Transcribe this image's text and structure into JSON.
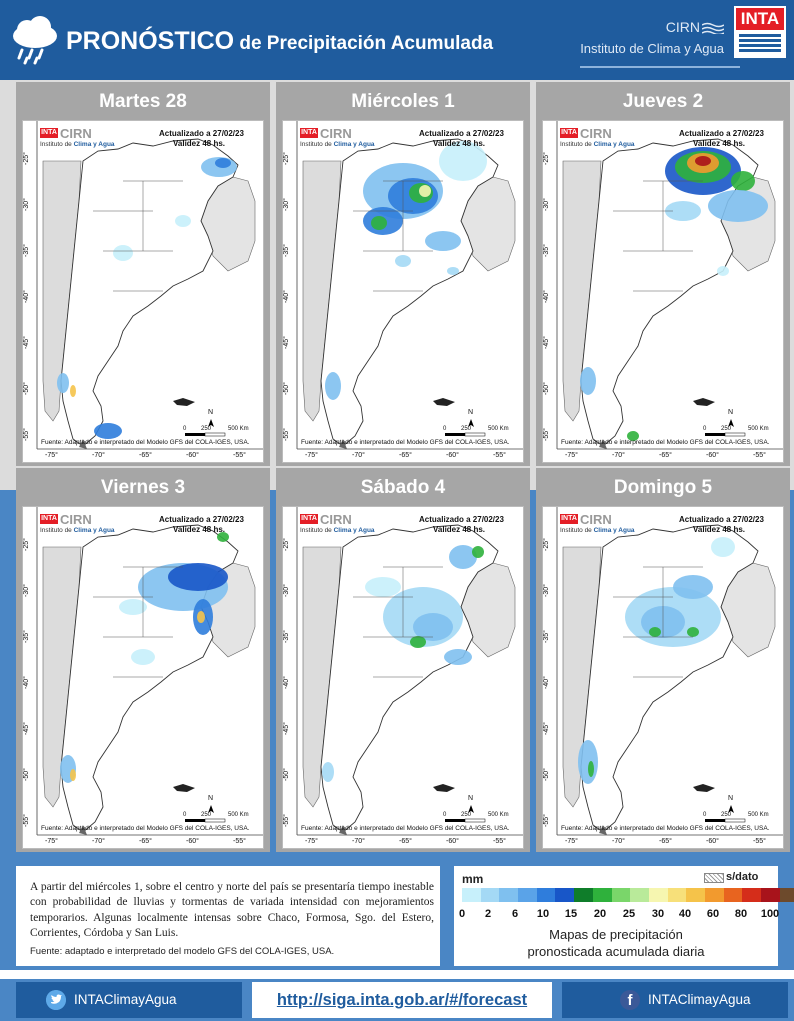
{
  "header": {
    "title_big": "PRONÓSTICO",
    "title_small": " de Precipitación Acumulada",
    "brand_cirn": "CIRN",
    "brand_institute": "Instituto de Clima y Agua",
    "logo_text": "INTA"
  },
  "maps": {
    "updated": "Actualizado a 27/02/23",
    "validity": "Validez 48 hs.",
    "mini_cirn": "CIRN",
    "mini_institute_prefix": "Instituto de ",
    "mini_institute_highlight": "Clima y Agua",
    "mini_inta": "INTA",
    "source": "Fuente: Adaptado e interpretado del Modelo GFS del COLA-IGES, USA.",
    "north": "N",
    "scale_0": "0",
    "scale_250": "250",
    "scale_500": "500 Km",
    "lat_ticks": [
      "-25°",
      "-30°",
      "-35°",
      "-40°",
      "-45°",
      "-50°",
      "-55°"
    ],
    "lon_ticks": [
      "-75°",
      "-70°",
      "-65°",
      "-60°",
      "-55°"
    ],
    "panels": [
      {
        "day": "Martes 28"
      },
      {
        "day": "Miércoles 1"
      },
      {
        "day": "Jueves 2"
      },
      {
        "day": "Viernes 3"
      },
      {
        "day": "Sábado 4"
      },
      {
        "day": "Domingo 5"
      }
    ]
  },
  "description": {
    "text": "A partir del miércoles 1, sobre el centro y norte del país se presentaría tiempo inestable con probabilidad de lluvias y tormentas de variada intensidad con mejoramientos temporarios. Algunas localmente intensas sobre Chaco, Formosa, Sgo. del Estero, Corrientes, Córdoba y San Luis.",
    "source": "Fuente: adaptado e interpretado del modelo GFS del COLA-IGES, USA."
  },
  "legend": {
    "unit": "mm",
    "no_data": "s/dato",
    "ticks": [
      "0",
      "2",
      "6",
      "10",
      "15",
      "20",
      "25",
      "30",
      "40",
      "60",
      "80",
      "100"
    ],
    "colors": [
      "#c7f0fb",
      "#a4d9f5",
      "#7fc0ef",
      "#5aa3e8",
      "#2f7ddc",
      "#1856c8",
      "#0f7d2a",
      "#2fb13c",
      "#7ad66a",
      "#b9ea9a",
      "#f6f6b0",
      "#f7e07a",
      "#f5c34a",
      "#f29a2e",
      "#e8641f",
      "#d52d1a",
      "#a8131b",
      "#6d4a2c"
    ],
    "caption_line1": "Mapas de precipitación",
    "caption_line2": "pronosticada acumulada diaria"
  },
  "footer": {
    "twitter": "INTAClimayAgua",
    "link": "http://siga.inta.gob.ar/#/forecast",
    "facebook": "INTAClimayAgua"
  }
}
